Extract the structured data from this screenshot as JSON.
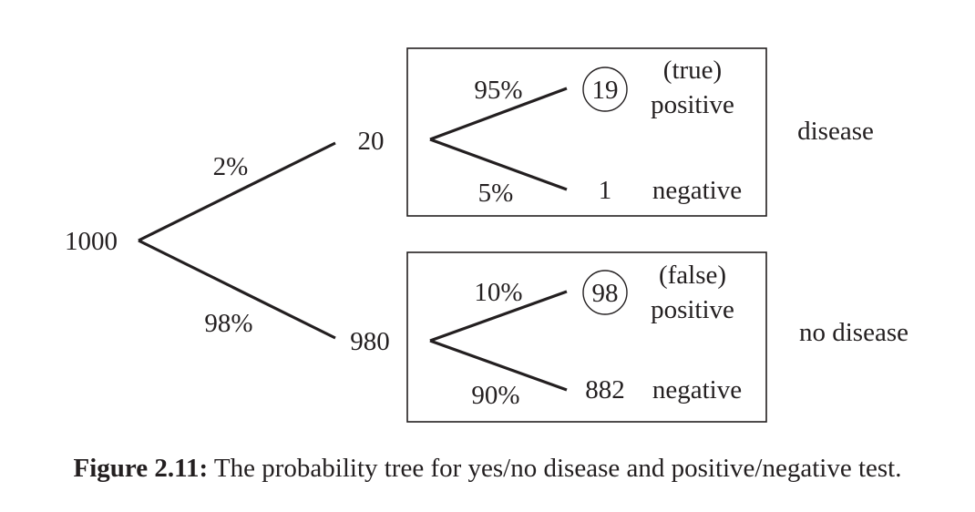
{
  "diagram": {
    "root": "1000",
    "branches": {
      "disease_prob": "2%",
      "no_disease_prob": "98%"
    },
    "disease": {
      "count": "20",
      "label": "disease",
      "pos_prob": "95%",
      "neg_prob": "5%",
      "pos_count": "19",
      "neg_count": "1",
      "pos_label_top": "(true)",
      "pos_label_bottom": "positive",
      "neg_label": "negative"
    },
    "no_disease": {
      "count": "980",
      "label": "no disease",
      "pos_prob": "10%",
      "neg_prob": "90%",
      "pos_count": "98",
      "neg_count": "882",
      "pos_label_top": "(false)",
      "pos_label_bottom": "positive",
      "neg_label": "negative"
    }
  },
  "caption": {
    "label": "Figure 2.11:",
    "text": "The probability tree for yes/no disease and positive/negative test."
  }
}
